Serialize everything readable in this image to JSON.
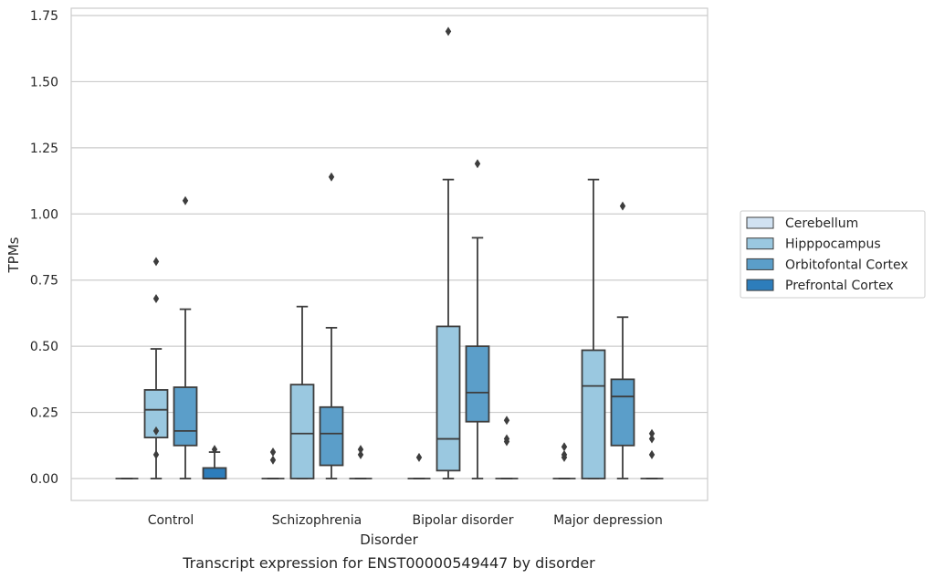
{
  "chart_data": {
    "type": "box",
    "xlabel": "Disorder",
    "ylabel": "TPMs",
    "caption": "Transcript expression for ENST00000549447 by disorder",
    "categories": [
      "Control",
      "Schizophrenia",
      "Bipolar disorder",
      "Major depression"
    ],
    "ylim": [
      -0.08,
      1.77
    ],
    "yticks": [
      0.0,
      0.25,
      0.5,
      0.75,
      1.0,
      1.25,
      1.5,
      1.75
    ],
    "ytick_labels": [
      "0.00",
      "0.25",
      "0.50",
      "0.75",
      "1.00",
      "1.25",
      "1.50",
      "1.75"
    ],
    "grid": "horizontal",
    "legend_position": "right",
    "series": [
      {
        "name": "Cerebellum",
        "color": "#d1e2f2",
        "boxes": [
          {
            "whislo": 0,
            "q1": 0,
            "med": 0,
            "q3": 0,
            "whishi": 0,
            "fliers": []
          },
          {
            "whislo": 0,
            "q1": 0,
            "med": 0,
            "q3": 0,
            "whishi": 0,
            "fliers": [
              0.1,
              0.07
            ]
          },
          {
            "whislo": 0,
            "q1": 0,
            "med": 0,
            "q3": 0,
            "whishi": 0,
            "fliers": [
              0.08
            ]
          },
          {
            "whislo": 0,
            "q1": 0,
            "med": 0,
            "q3": 0,
            "whishi": 0,
            "fliers": [
              0.12,
              0.09,
              0.08
            ]
          }
        ]
      },
      {
        "name": "Hipppocampus",
        "color": "#9ac8e0",
        "boxes": [
          {
            "whislo": 0,
            "q1": 0.155,
            "med": 0.26,
            "q3": 0.335,
            "whishi": 0.49,
            "fliers": [
              0.18,
              0.09,
              0.68,
              0.82
            ]
          },
          {
            "whislo": 0,
            "q1": 0,
            "med": 0.17,
            "q3": 0.355,
            "whishi": 0.65,
            "fliers": []
          },
          {
            "whislo": 0,
            "q1": 0.03,
            "med": 0.15,
            "q3": 0.575,
            "whishi": 1.13,
            "fliers": [
              1.69
            ]
          },
          {
            "whislo": 0,
            "q1": 0,
            "med": 0.35,
            "q3": 0.485,
            "whishi": 1.13,
            "fliers": []
          }
        ]
      },
      {
        "name": "Orbitofontal Cortex",
        "color": "#5b9ec9",
        "boxes": [
          {
            "whislo": 0,
            "q1": 0.125,
            "med": 0.18,
            "q3": 0.345,
            "whishi": 0.64,
            "fliers": [
              1.05
            ]
          },
          {
            "whislo": 0,
            "q1": 0.05,
            "med": 0.17,
            "q3": 0.27,
            "whishi": 0.57,
            "fliers": [
              1.14
            ]
          },
          {
            "whislo": 0,
            "q1": 0.215,
            "med": 0.325,
            "q3": 0.5,
            "whishi": 0.91,
            "fliers": [
              1.19
            ]
          },
          {
            "whislo": 0,
            "q1": 0.125,
            "med": 0.31,
            "q3": 0.375,
            "whishi": 0.61,
            "fliers": [
              1.03
            ]
          }
        ]
      },
      {
        "name": "Prefrontal Cortex",
        "color": "#2d7dbb",
        "boxes": [
          {
            "whislo": 0,
            "q1": 0,
            "med": 0,
            "q3": 0.04,
            "whishi": 0.1,
            "fliers": [
              0.11
            ]
          },
          {
            "whislo": 0,
            "q1": 0,
            "med": 0,
            "q3": 0,
            "whishi": 0,
            "fliers": [
              0.11,
              0.09
            ]
          },
          {
            "whislo": 0,
            "q1": 0,
            "med": 0,
            "q3": 0,
            "whishi": 0,
            "fliers": [
              0.22,
              0.15,
              0.14
            ]
          },
          {
            "whislo": 0,
            "q1": 0,
            "med": 0,
            "q3": 0,
            "whishi": 0,
            "fliers": [
              0.17,
              0.15,
              0.09
            ]
          }
        ]
      }
    ]
  }
}
